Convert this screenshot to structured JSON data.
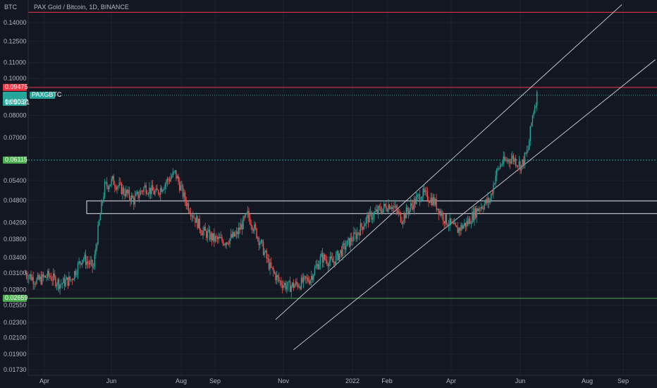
{
  "chart_data": {
    "type": "candlestick",
    "title": "PAX Gold / Bitcoin, 1D, BINANCE",
    "y_axis_unit": "BTC",
    "y_scale": "log",
    "y_ticks": [
      "0.14000",
      "0.12500",
      "0.11000",
      "0.10000",
      "0.08000",
      "0.07000",
      "0.05400",
      "0.04800",
      "0.04200",
      "0.03800",
      "0.03400",
      "0.03100",
      "0.02800",
      "0.02550",
      "0.02300",
      "0.02100",
      "0.01900",
      "0.01730"
    ],
    "x_ticks": [
      "Apr",
      "Jun",
      "Aug",
      "Sep",
      "Nov",
      "2022",
      "Feb",
      "Apr",
      "Jun",
      "Aug",
      "Sep"
    ],
    "price_labels": {
      "resistance": "0.09475",
      "last_price": "0.09037",
      "countdown": "18:50:21",
      "symbol": "PAXGBTC",
      "level_mid": "0.06115",
      "support": "0.02659"
    },
    "horizontal_levels": [
      {
        "name": "resistance",
        "value": 0.09475,
        "color": "#f23645"
      },
      {
        "name": "level-mid",
        "value": 0.06115,
        "color": "#26a69a"
      },
      {
        "name": "support",
        "value": 0.02659,
        "color": "#4caf50"
      },
      {
        "name": "top-line",
        "value": 0.149,
        "color": "#f23645"
      }
    ],
    "zone": {
      "low": 0.0443,
      "high": 0.0478
    },
    "channel_lines": [
      {
        "name": "upper",
        "from": [
          "2021-10-25",
          0.0234
        ],
        "to": [
          "2022-08-31",
          0.156
        ]
      },
      {
        "name": "lower",
        "from": [
          "2021-11-10",
          0.0195
        ],
        "to": [
          "2022-09-30",
          0.112
        ]
      }
    ],
    "close_series": [
      [
        "2021-03-15",
        0.031
      ],
      [
        "2021-03-25",
        0.0295
      ],
      [
        "2021-04-05",
        0.0305
      ],
      [
        "2021-04-15",
        0.029
      ],
      [
        "2021-04-25",
        0.0298
      ],
      [
        "2021-05-05",
        0.034
      ],
      [
        "2021-05-15",
        0.032
      ],
      [
        "2021-05-25",
        0.052
      ],
      [
        "2021-06-01",
        0.054
      ],
      [
        "2021-06-10",
        0.051
      ],
      [
        "2021-06-20",
        0.048
      ],
      [
        "2021-06-30",
        0.052
      ],
      [
        "2021-07-10",
        0.05
      ],
      [
        "2021-07-20",
        0.054
      ],
      [
        "2021-07-27",
        0.0565
      ],
      [
        "2021-08-05",
        0.048
      ],
      [
        "2021-08-12",
        0.044
      ],
      [
        "2021-08-20",
        0.04
      ],
      [
        "2021-08-31",
        0.038
      ],
      [
        "2021-09-10",
        0.0375
      ],
      [
        "2021-09-20",
        0.039
      ],
      [
        "2021-09-30",
        0.044
      ],
      [
        "2021-10-10",
        0.038
      ],
      [
        "2021-10-20",
        0.032
      ],
      [
        "2021-10-28",
        0.0295
      ],
      [
        "2021-11-05",
        0.0285
      ],
      [
        "2021-11-15",
        0.029
      ],
      [
        "2021-11-25",
        0.03
      ],
      [
        "2021-12-05",
        0.034
      ],
      [
        "2021-12-15",
        0.033
      ],
      [
        "2021-12-25",
        0.036
      ],
      [
        "2022-01-05",
        0.039
      ],
      [
        "2022-01-15",
        0.043
      ],
      [
        "2022-01-25",
        0.045
      ],
      [
        "2022-02-05",
        0.047
      ],
      [
        "2022-02-15",
        0.043
      ],
      [
        "2022-02-25",
        0.047
      ],
      [
        "2022-03-05",
        0.05
      ],
      [
        "2022-03-15",
        0.048
      ],
      [
        "2022-03-25",
        0.043
      ],
      [
        "2022-04-05",
        0.04
      ],
      [
        "2022-04-15",
        0.042
      ],
      [
        "2022-04-25",
        0.046
      ],
      [
        "2022-05-05",
        0.048
      ],
      [
        "2022-05-10",
        0.056
      ],
      [
        "2022-05-15",
        0.06
      ],
      [
        "2022-05-25",
        0.062
      ],
      [
        "2022-06-02",
        0.059
      ],
      [
        "2022-06-08",
        0.065
      ],
      [
        "2022-06-12",
        0.08
      ],
      [
        "2022-06-16",
        0.0904
      ]
    ]
  }
}
